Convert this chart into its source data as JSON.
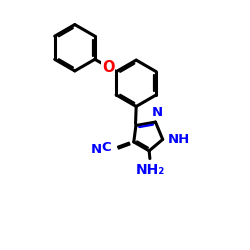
{
  "bg": "#ffffff",
  "bc": "#000000",
  "nc": "#0000ff",
  "oc": "#ff0000",
  "lw": 2.2,
  "ilw": 1.6,
  "fs": 9.5,
  "figsize": [
    2.5,
    2.5
  ],
  "dpi": 100,
  "xlim": [
    -0.5,
    5.5
  ],
  "ylim": [
    -1.2,
    5.2
  ]
}
